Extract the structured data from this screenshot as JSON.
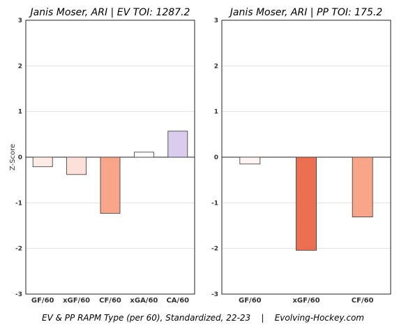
{
  "caption": "EV & PP RAPM Type (per 60), Standardized, 22-23    |    Evolving-Hockey.com",
  "ylabel": "Z-Score",
  "chart_data": [
    {
      "type": "bar",
      "title": "Janis Moser, ARI  |  EV TOI: 1287.2",
      "categories": [
        "GF/60",
        "xGF/60",
        "CF/60",
        "xGA/60",
        "CA/60"
      ],
      "values": [
        -0.21,
        -0.38,
        -1.23,
        0.11,
        0.57
      ],
      "colors": [
        "#fdece6",
        "#fde0d8",
        "#f9a58a",
        "#ffffff",
        "#d9ccec"
      ],
      "ylim": [
        -3,
        3
      ],
      "yticks": [
        3,
        2,
        1,
        0,
        -1,
        -2,
        -3
      ],
      "grid": true
    },
    {
      "type": "bar",
      "title": "Janis Moser, ARI  |  PP TOI: 175.2",
      "categories": [
        "GF/60",
        "xGF/60",
        "CF/60"
      ],
      "values": [
        -0.15,
        -2.04,
        -1.31
      ],
      "colors": [
        "#fff5f2",
        "#ec6f52",
        "#f9a58a"
      ],
      "ylim": [
        -3,
        3
      ],
      "yticks": [
        3,
        2,
        1,
        0,
        -1,
        -2,
        -3
      ],
      "grid": true
    }
  ]
}
